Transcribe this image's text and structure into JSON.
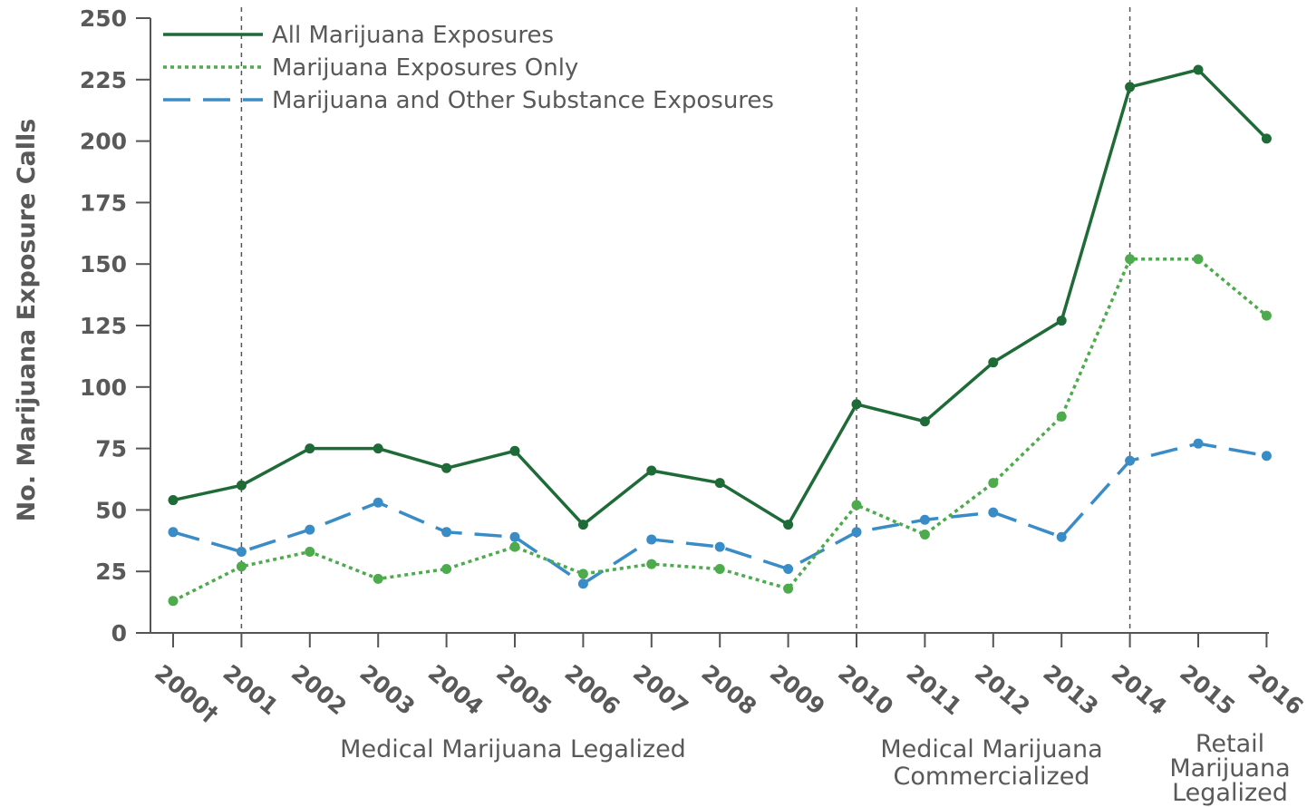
{
  "chart_data": {
    "type": "line",
    "title": "",
    "xlabel": "",
    "ylabel": "No. Marijuana Exposure Calls",
    "ylim": [
      0,
      250
    ],
    "yticks": [
      0,
      25,
      50,
      75,
      100,
      125,
      150,
      175,
      200,
      225,
      250
    ],
    "categories": [
      "2000†",
      "2001",
      "2002",
      "2003",
      "2004",
      "2005",
      "2006",
      "2007",
      "2008",
      "2009",
      "2010",
      "2011",
      "2012",
      "2013",
      "2014",
      "2015",
      "2016"
    ],
    "legend_position": "top-left",
    "grid": false,
    "series": [
      {
        "name": "All Marijuana Exposures",
        "color": "#1e6b38",
        "style": "solid",
        "values": [
          54,
          60,
          75,
          75,
          67,
          74,
          44,
          66,
          61,
          44,
          93,
          86,
          110,
          127,
          222,
          229,
          201
        ]
      },
      {
        "name": "Marijuana Exposures Only",
        "color": "#4daa4d",
        "style": "dotted",
        "values": [
          13,
          27,
          33,
          22,
          26,
          35,
          24,
          28,
          26,
          18,
          52,
          40,
          61,
          88,
          152,
          152,
          129
        ]
      },
      {
        "name": "Marijuana and Other Substance Exposures",
        "color": "#3a8cc6",
        "style": "dashed",
        "values": [
          41,
          33,
          42,
          53,
          41,
          39,
          20,
          38,
          35,
          26,
          41,
          46,
          49,
          39,
          70,
          77,
          72
        ]
      }
    ],
    "event_lines": [
      {
        "at": "2001",
        "label_lines": [
          "Medical Marijuana Legalized"
        ]
      },
      {
        "at": "2010",
        "label_lines": [
          "Medical Marijuana",
          "Commercialized"
        ]
      },
      {
        "at": "2014",
        "label_lines": [
          "Retail",
          "Marijuana",
          "Legalized"
        ]
      }
    ]
  }
}
